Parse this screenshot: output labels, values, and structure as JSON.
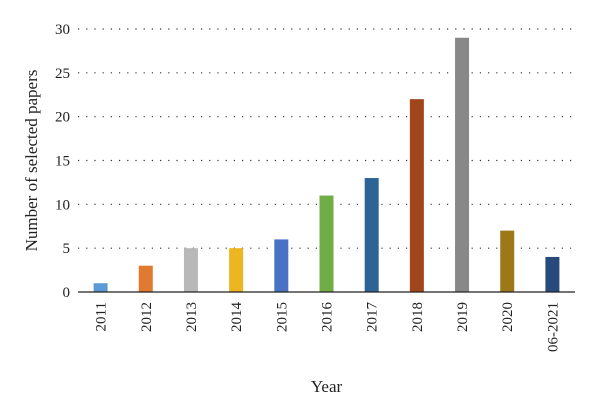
{
  "chart_data": {
    "type": "bar",
    "categories": [
      "2011",
      "2012",
      "2013",
      "2014",
      "2015",
      "2016",
      "2017",
      "2018",
      "2019",
      "2020",
      "06-2021"
    ],
    "values": [
      1,
      3,
      5,
      5,
      6,
      11,
      13,
      22,
      29,
      7,
      4
    ],
    "colors": [
      "#5b9bd5",
      "#e07a2e",
      "#b8b8b8",
      "#edb51f",
      "#4a72c4",
      "#70ad47",
      "#2e6396",
      "#a0461a",
      "#888888",
      "#9c7818",
      "#284a7a"
    ],
    "title": "",
    "xlabel": "Year",
    "ylabel": "Number of selected papers",
    "ylim": [
      0,
      30
    ],
    "yticks": [
      0,
      5,
      10,
      15,
      20,
      25,
      30
    ],
    "grid": true
  }
}
